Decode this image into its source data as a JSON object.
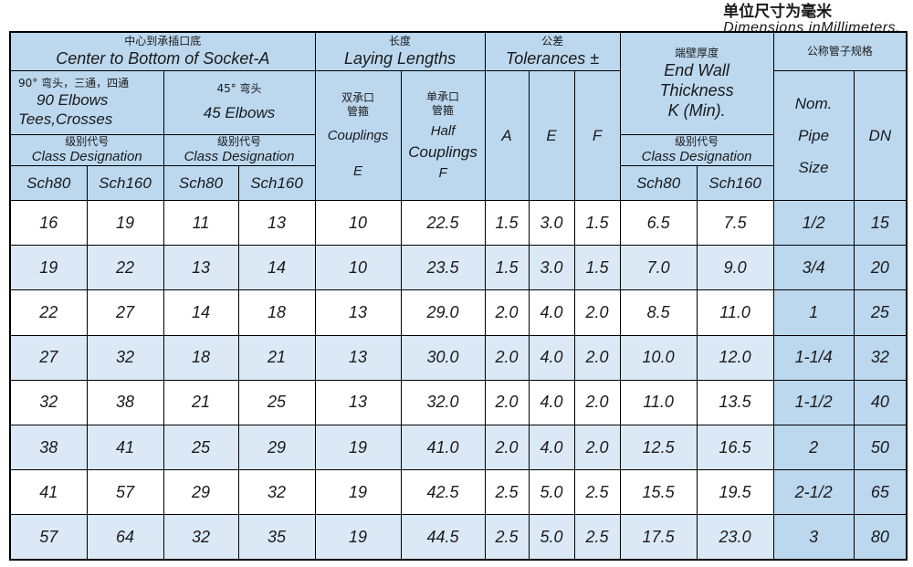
{
  "caption": {
    "cn": "单位尺寸为毫米",
    "en": "Dimensions inMillimeters."
  },
  "headers": {
    "center_cn": "中心到承插口底",
    "center_en": "Center to  Bottom  of Socket-A",
    "elbow90_cn": "90° 弯头，三通，四通",
    "elbow90_en1": "90    Elbows",
    "elbow90_en2": "Tees,Crosses",
    "elbow45_cn": "45° 弯头",
    "elbow45_en": "45    Elbows",
    "class_cn": "级别代号",
    "class_en": "Class Designation",
    "sch80": "Sch80",
    "sch160": "Sch160",
    "laying_cn": "长度",
    "laying_en": "Laying  Lengths",
    "coupling_cn1": "双承口",
    "coupling_cn2": "管箍",
    "coupling_en": "Couplings",
    "coupling_sym": "E",
    "half_cn1": "单承口",
    "half_cn2": "管箍",
    "half_en1": "Half",
    "half_en2": "Couplings",
    "half_sym": "F",
    "tol_cn": "公差",
    "tol_en": "Tolerances  ±",
    "tol_a": "A",
    "tol_e": "E",
    "tol_f": "F",
    "wall_cn": "端壁厚度",
    "wall_en1": "End Wall",
    "wall_en2": "Thickness",
    "wall_en3": "K  (Min).",
    "size_cn": "公称管子规格",
    "nom_1": "Nom.",
    "nom_2": "Pipe",
    "nom_3": "Size",
    "dn": "DN"
  },
  "rows": [
    [
      "16",
      "19",
      "11",
      "13",
      "10",
      "22.5",
      "1.5",
      "3.0",
      "1.5",
      "6.5",
      "7.5",
      "1/2",
      "15"
    ],
    [
      "19",
      "22",
      "13",
      "14",
      "10",
      "23.5",
      "1.5",
      "3.0",
      "1.5",
      "7.0",
      "9.0",
      "3/4",
      "20"
    ],
    [
      "22",
      "27",
      "14",
      "18",
      "13",
      "29.0",
      "2.0",
      "4.0",
      "2.0",
      "8.5",
      "11.0",
      "1",
      "25"
    ],
    [
      "27",
      "32",
      "18",
      "21",
      "13",
      "30.0",
      "2.0",
      "4.0",
      "2.0",
      "10.0",
      "12.0",
      "1-1/4",
      "32"
    ],
    [
      "32",
      "38",
      "21",
      "25",
      "13",
      "32.0",
      "2.0",
      "4.0",
      "2.0",
      "11.0",
      "13.5",
      "1-1/2",
      "40"
    ],
    [
      "38",
      "41",
      "25",
      "29",
      "19",
      "41.0",
      "2.0",
      "4.0",
      "2.0",
      "12.5",
      "16.5",
      "2",
      "50"
    ],
    [
      "41",
      "57",
      "29",
      "32",
      "19",
      "42.5",
      "2.5",
      "5.0",
      "2.5",
      "15.5",
      "19.5",
      "2-1/2",
      "65"
    ],
    [
      "57",
      "64",
      "32",
      "35",
      "19",
      "44.5",
      "2.5",
      "5.0",
      "2.5",
      "17.5",
      "23.0",
      "3",
      "80"
    ]
  ]
}
